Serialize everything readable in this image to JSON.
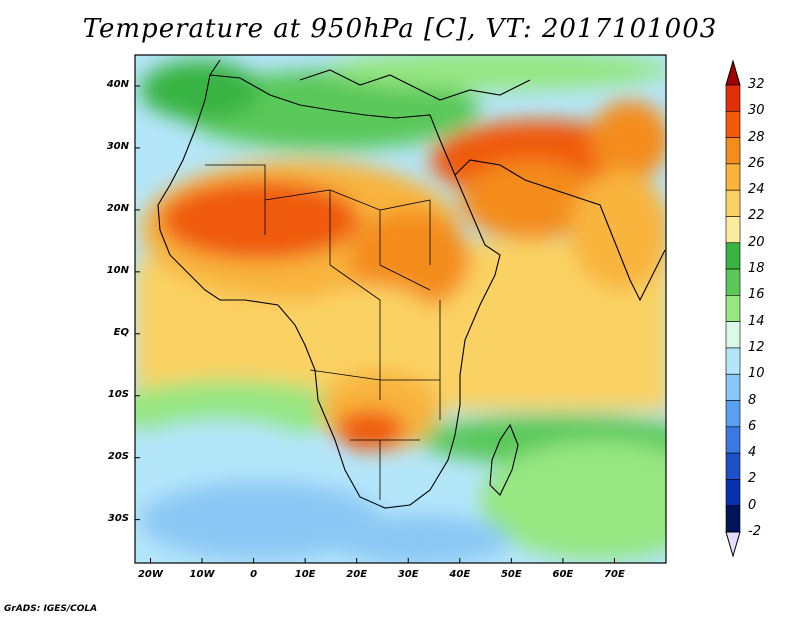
{
  "title": "Temperature at 950hPa [C], VT: 2017101003",
  "credit": "GrADS: IGES/COLA",
  "map": {
    "lon_range": [
      -23,
      80
    ],
    "lat_range": [
      -37,
      45
    ],
    "lat_labels": [
      {
        "value": 40,
        "text": "40N"
      },
      {
        "value": 30,
        "text": "30N"
      },
      {
        "value": 20,
        "text": "20N"
      },
      {
        "value": 10,
        "text": "10N"
      },
      {
        "value": 0,
        "text": "EQ"
      },
      {
        "value": -10,
        "text": "10S"
      },
      {
        "value": -20,
        "text": "20S"
      },
      {
        "value": -30,
        "text": "30S"
      }
    ],
    "lon_labels": [
      {
        "value": -20,
        "text": "20W"
      },
      {
        "value": -10,
        "text": "10W"
      },
      {
        "value": 0,
        "text": "0"
      },
      {
        "value": 10,
        "text": "10E"
      },
      {
        "value": 20,
        "text": "20E"
      },
      {
        "value": 30,
        "text": "30E"
      },
      {
        "value": 40,
        "text": "40E"
      },
      {
        "value": 50,
        "text": "50E"
      },
      {
        "value": 60,
        "text": "60E"
      },
      {
        "value": 70,
        "text": "70E"
      }
    ]
  },
  "colorbar": {
    "levels": [
      "32",
      "30",
      "28",
      "26",
      "24",
      "22",
      "20",
      "18",
      "16",
      "14",
      "12",
      "10",
      "8",
      "6",
      "4",
      "2",
      "0",
      "-2"
    ],
    "colors": [
      "#a50000",
      "#e0300a",
      "#f05a0a",
      "#f48c1e",
      "#f8b43c",
      "#fad264",
      "#fcec9c",
      "#38b442",
      "#5ac85a",
      "#96e682",
      "#dcf8e8",
      "#b4e6fa",
      "#8cc8f5",
      "#5aa0f0",
      "#3c78e1",
      "#1e50c8",
      "#0a32af",
      "#00145a",
      "#e6dcff"
    ]
  }
}
